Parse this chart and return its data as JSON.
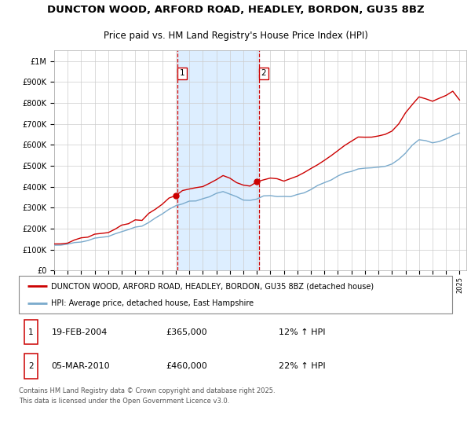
{
  "title": "DUNCTON WOOD, ARFORD ROAD, HEADLEY, BORDON, GU35 8BZ",
  "subtitle": "Price paid vs. HM Land Registry's House Price Index (HPI)",
  "property_label": "DUNCTON WOOD, ARFORD ROAD, HEADLEY, BORDON, GU35 8BZ (detached house)",
  "hpi_label": "HPI: Average price, detached house, East Hampshire",
  "transaction1_date": "19-FEB-2004",
  "transaction1_price": "£365,000",
  "transaction1_hpi": "12% ↑ HPI",
  "transaction2_date": "05-MAR-2010",
  "transaction2_price": "£460,000",
  "transaction2_hpi": "22% ↑ HPI",
  "footnote": "Contains HM Land Registry data © Crown copyright and database right 2025.\nThis data is licensed under the Open Government Licence v3.0.",
  "property_color": "#cc0000",
  "hpi_color": "#7aaacc",
  "shaded_region_color": "#ddeeff",
  "transaction1_x": 2004.12,
  "transaction2_x": 2010.17,
  "ylim_max": 1050000,
  "ylim_min": 0,
  "hpi_base": [
    120000,
    122000,
    125000,
    130000,
    137000,
    144000,
    151000,
    157000,
    164000,
    174000,
    187000,
    197000,
    207000,
    217000,
    234000,
    253000,
    273000,
    292000,
    312000,
    322000,
    328000,
    333000,
    343000,
    356000,
    370000,
    377000,
    368000,
    352000,
    338000,
    336000,
    343000,
    352000,
    358000,
    356000,
    352000,
    356000,
    363000,
    376000,
    390000,
    406000,
    418000,
    432000,
    452000,
    467000,
    477000,
    487000,
    490000,
    488000,
    493000,
    502000,
    508000,
    532000,
    562000,
    597000,
    622000,
    618000,
    612000,
    617000,
    628000,
    642000,
    658000
  ],
  "property_base": [
    128000,
    132000,
    136000,
    143000,
    151000,
    160000,
    170000,
    176000,
    184000,
    196000,
    211000,
    224000,
    236000,
    250000,
    270000,
    293000,
    318000,
    346000,
    366000,
    383000,
    388000,
    390000,
    403000,
    420000,
    436000,
    450000,
    440000,
    422000,
    406000,
    403000,
    420000,
    436000,
    443000,
    440000,
    433000,
    438000,
    450000,
    468000,
    488000,
    511000,
    528000,
    550000,
    576000,
    598000,
    616000,
    630000,
    636000,
    636000,
    643000,
    658000,
    666000,
    700000,
    743000,
    793000,
    828000,
    820000,
    813000,
    818000,
    833000,
    853000,
    818000
  ]
}
